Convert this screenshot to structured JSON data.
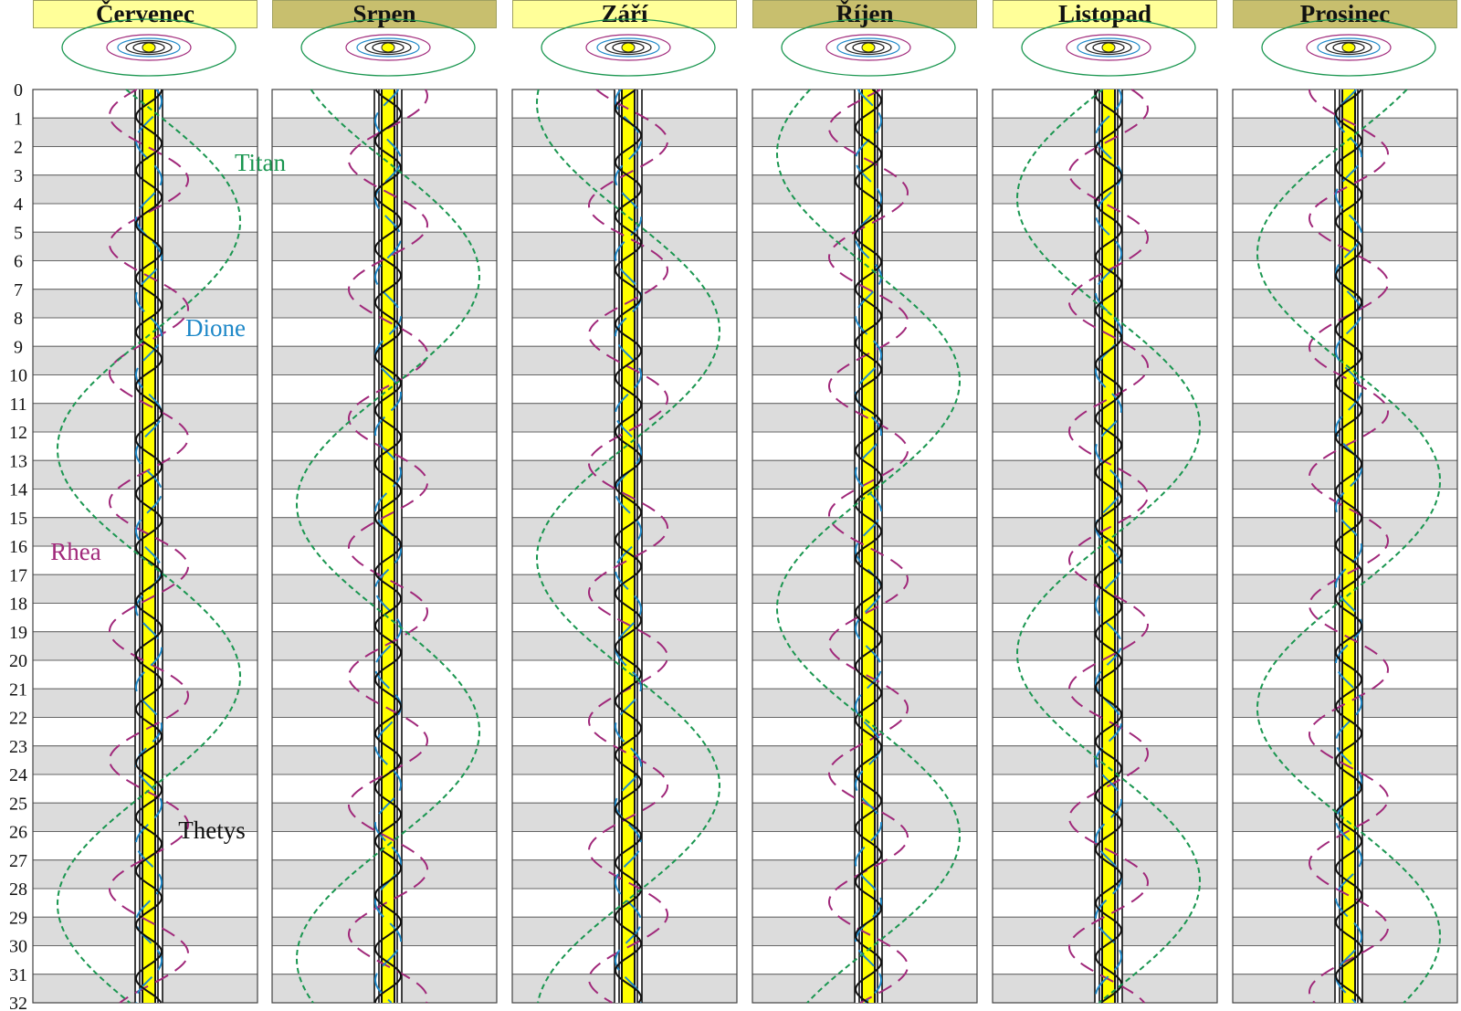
{
  "months": [
    {
      "name": "Červenec",
      "header_color": "#ffff99",
      "titan_phase": 0.96,
      "moon_phases": [
        0.1,
        0.55,
        0.25
      ]
    },
    {
      "name": "Srpen",
      "header_color": "#c8bf6e",
      "titan_phase": 0.84,
      "moon_phases": [
        0.35,
        0.2,
        0.8
      ]
    },
    {
      "name": "Září",
      "header_color": "#ffff99",
      "titan_phase": 0.72,
      "moon_phases": [
        0.6,
        0.85,
        0.4
      ]
    },
    {
      "name": "Říjen",
      "header_color": "#c8bf6e",
      "titan_phase": 0.61,
      "moon_phases": [
        0.85,
        0.45,
        0.05
      ]
    },
    {
      "name": "Listopad",
      "header_color": "#ffff99",
      "titan_phase": 0.51,
      "moon_phases": [
        0.15,
        0.1,
        0.65
      ]
    },
    {
      "name": "Prosinec",
      "header_color": "#c8bf6e",
      "titan_phase": 0.39,
      "moon_phases": [
        0.4,
        0.75,
        0.3
      ]
    }
  ],
  "day_labels": [
    "0",
    "1",
    "2",
    "3",
    "4",
    "5",
    "6",
    "7",
    "8",
    "9",
    "10",
    "11",
    "12",
    "13",
    "14",
    "15",
    "16",
    "17",
    "18",
    "19",
    "20",
    "21",
    "22",
    "23",
    "24",
    "25",
    "26",
    "27",
    "28",
    "29",
    "30",
    "31",
    "32"
  ],
  "moons": [
    {
      "name": "Titan",
      "color": "#1a9650",
      "period_days": 15.945
    },
    {
      "name": "Dione",
      "color": "#1e88c8",
      "period_days": 2.737
    },
    {
      "name": "Rhea",
      "color": "#a0287a",
      "period_days": 4.518
    },
    {
      "name": "Thetys",
      "color": "#111111",
      "period_days": 1.888
    }
  ],
  "planet_color": "#ffff00",
  "row_shade_color": "#dcdcdc"
}
